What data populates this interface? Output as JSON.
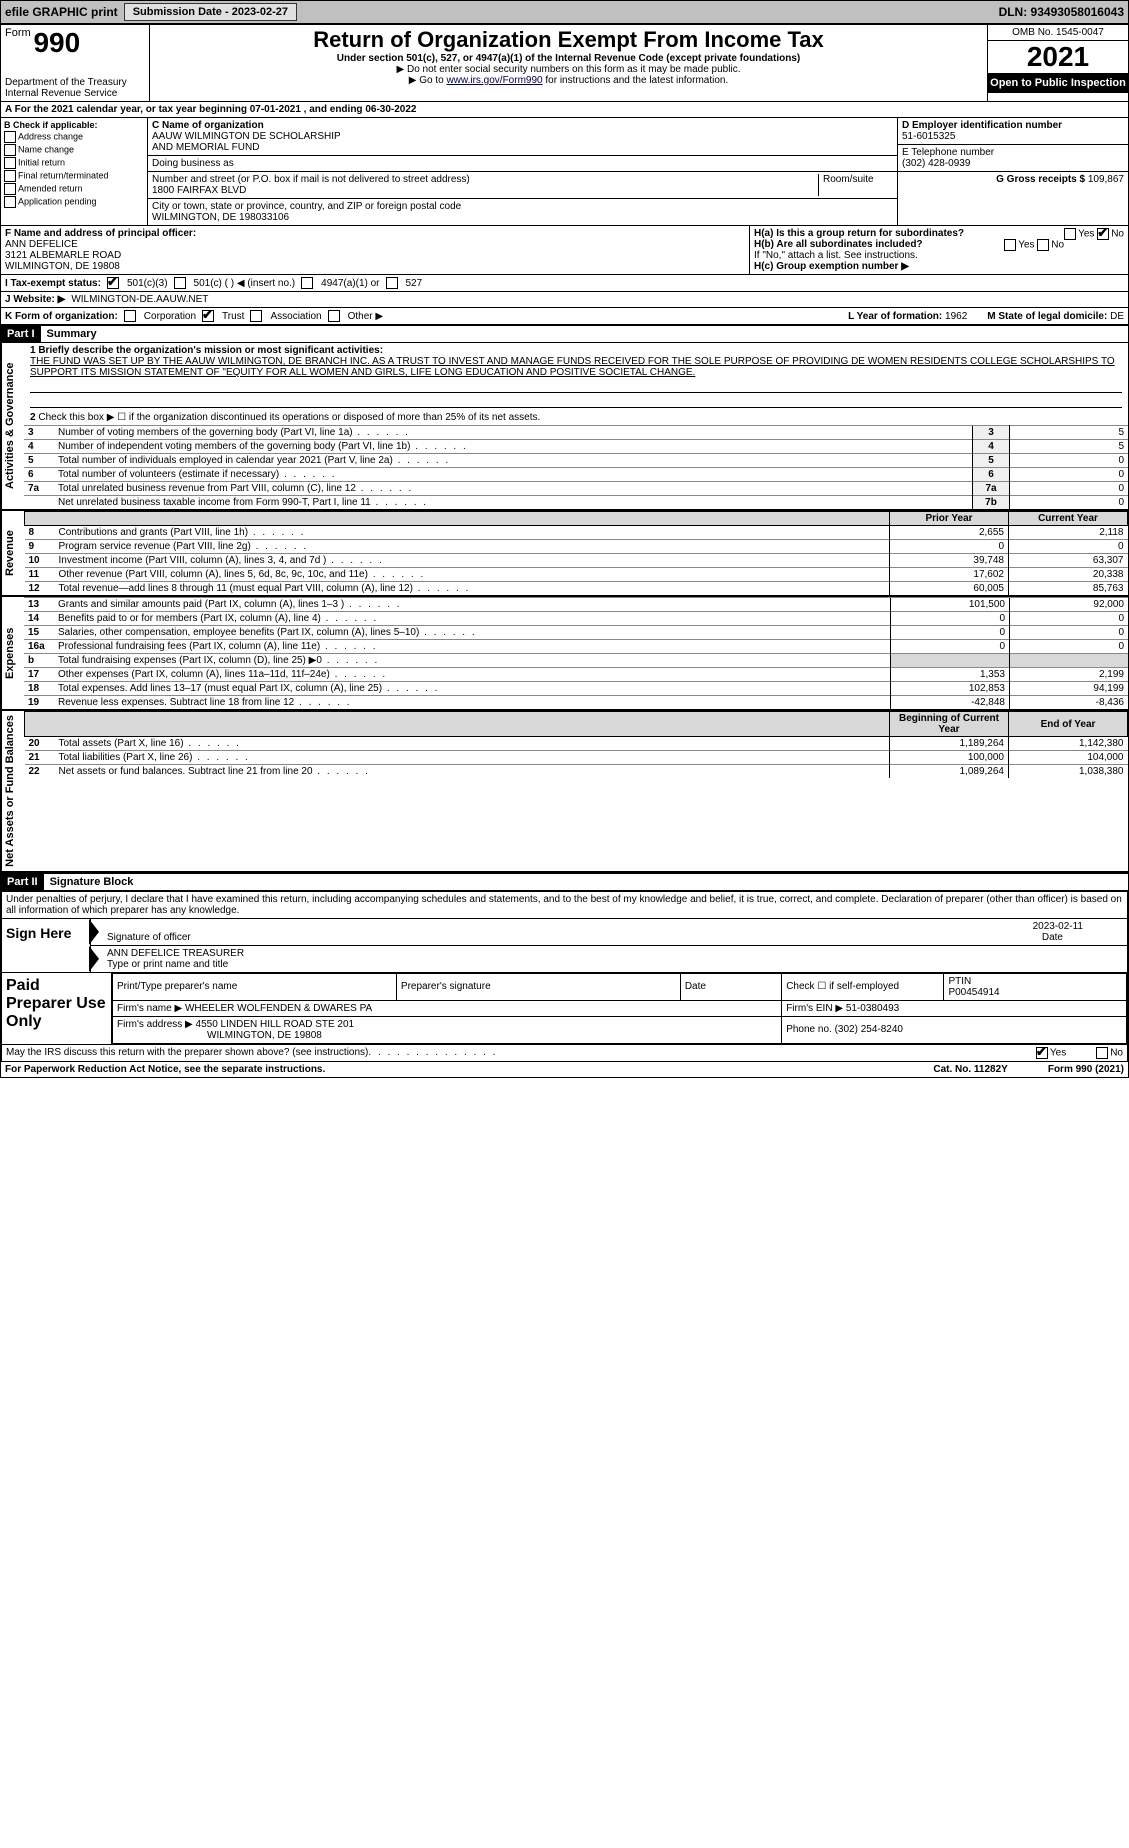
{
  "topbar": {
    "efile": "efile GRAPHIC print",
    "submission_label": "Submission Date - 2023-02-27",
    "dln": "DLN: 93493058016043"
  },
  "header": {
    "form_word": "Form",
    "form_no": "990",
    "title": "Return of Organization Exempt From Income Tax",
    "sub": "Under section 501(c), 527, or 4947(a)(1) of the Internal Revenue Code (except private foundations)",
    "line1": "▶ Do not enter social security numbers on this form as it may be made public.",
    "line2_pre": "▶ Go to ",
    "line2_link": "www.irs.gov/Form990",
    "line2_post": " for instructions and the latest information.",
    "dept": "Department of the Treasury",
    "irs": "Internal Revenue Service",
    "omb": "OMB No. 1545-0047",
    "year": "2021",
    "open": "Open to Public Inspection"
  },
  "lineA": "A For the 2021 calendar year, or tax year beginning 07-01-2021   , and ending 06-30-2022",
  "blockB": {
    "label": "B Check if applicable:",
    "opts": [
      "Address change",
      "Name change",
      "Initial return",
      "Final return/terminated",
      "Amended return",
      "Application pending"
    ]
  },
  "blockC": {
    "c_lab": "C Name of organization",
    "name1": "AAUW WILMINGTON DE SCHOLARSHIP",
    "name2": "AND MEMORIAL FUND",
    "dba_lab": "Doing business as",
    "addr_lab": "Number and street (or P.O. box if mail is not delivered to street address)",
    "room_lab": "Room/suite",
    "addr": "1800 FAIRFAX BLVD",
    "city_lab": "City or town, state or province, country, and ZIP or foreign postal code",
    "city": "WILMINGTON, DE  198033106"
  },
  "blockD": {
    "d_lab": "D Employer identification number",
    "ein": "51-6015325",
    "e_lab": "E Telephone number",
    "phone": "(302) 428-0939",
    "g_lab": "G Gross receipts $",
    "gross": "109,867"
  },
  "blockF": {
    "lab": "F Name and address of principal officer:",
    "name": "ANN DEFELICE",
    "addr1": "3121 ALBEMARLE ROAD",
    "addr2": "WILMINGTON, DE  19808"
  },
  "blockH": {
    "ha": "H(a)  Is this a group return for subordinates?",
    "hb": "H(b)  Are all subordinates included?",
    "hb2": "If \"No,\" attach a list. See instructions.",
    "hc": "H(c)  Group exemption number ▶",
    "yes": "Yes",
    "no": "No"
  },
  "taxrow": {
    "lab": "I  Tax-exempt status:",
    "o1": "501(c)(3)",
    "o2": "501(c) (   ) ◀ (insert no.)",
    "o3": "4947(a)(1) or",
    "o4": "527"
  },
  "webrow": {
    "lab": "J  Website: ▶",
    "val": "WILMINGTON-DE.AAUW.NET"
  },
  "krow": {
    "lab": "K Form of organization:",
    "o1": "Corporation",
    "o2": "Trust",
    "o3": "Association",
    "o4": "Other ▶",
    "l_lab": "L Year of formation:",
    "l_val": "1962",
    "m_lab": "M State of legal domicile:",
    "m_val": "DE"
  },
  "part1": {
    "tag": "Part I",
    "title": "Summary",
    "side1": "Activities & Governance",
    "side2": "Revenue",
    "side3": "Expenses",
    "side4": "Net Assets or Fund Balances",
    "l1_lab": "1 Briefly describe the organization's mission or most significant activities:",
    "l1_text": "THE FUND WAS SET UP BY THE AAUW WILMINGTON, DE BRANCH INC. AS A TRUST TO INVEST AND MANAGE FUNDS RECEIVED FOR THE SOLE PURPOSE OF PROVIDING DE WOMEN RESIDENTS COLLEGE SCHOLARSHIPS TO SUPPORT ITS MISSION STATEMENT OF \"EQUITY FOR ALL WOMEN AND GIRLS, LIFE LONG EDUCATION AND POSITIVE SOCIETAL CHANGE.",
    "l2": "Check this box ▶ ☐ if the organization discontinued its operations or disposed of more than 25% of its net assets.",
    "rows_ag": [
      {
        "n": "3",
        "t": "Number of voting members of the governing body (Part VI, line 1a)",
        "box": "3",
        "v": "5"
      },
      {
        "n": "4",
        "t": "Number of independent voting members of the governing body (Part VI, line 1b)",
        "box": "4",
        "v": "5"
      },
      {
        "n": "5",
        "t": "Total number of individuals employed in calendar year 2021 (Part V, line 2a)",
        "box": "5",
        "v": "0"
      },
      {
        "n": "6",
        "t": "Total number of volunteers (estimate if necessary)",
        "box": "6",
        "v": "0"
      },
      {
        "n": "7a",
        "t": "Total unrelated business revenue from Part VIII, column (C), line 12",
        "box": "7a",
        "v": "0"
      },
      {
        "n": "",
        "t": "Net unrelated business taxable income from Form 990-T, Part I, line 11",
        "box": "7b",
        "v": "0"
      }
    ],
    "hdr_prior": "Prior Year",
    "hdr_curr": "Current Year",
    "rows_rev": [
      {
        "n": "8",
        "t": "Contributions and grants (Part VIII, line 1h)",
        "p": "2,655",
        "c": "2,118"
      },
      {
        "n": "9",
        "t": "Program service revenue (Part VIII, line 2g)",
        "p": "0",
        "c": "0"
      },
      {
        "n": "10",
        "t": "Investment income (Part VIII, column (A), lines 3, 4, and 7d )",
        "p": "39,748",
        "c": "63,307"
      },
      {
        "n": "11",
        "t": "Other revenue (Part VIII, column (A), lines 5, 6d, 8c, 9c, 10c, and 11e)",
        "p": "17,602",
        "c": "20,338"
      },
      {
        "n": "12",
        "t": "Total revenue—add lines 8 through 11 (must equal Part VIII, column (A), line 12)",
        "p": "60,005",
        "c": "85,763"
      }
    ],
    "rows_exp": [
      {
        "n": "13",
        "t": "Grants and similar amounts paid (Part IX, column (A), lines 1–3 )",
        "p": "101,500",
        "c": "92,000"
      },
      {
        "n": "14",
        "t": "Benefits paid to or for members (Part IX, column (A), line 4)",
        "p": "0",
        "c": "0"
      },
      {
        "n": "15",
        "t": "Salaries, other compensation, employee benefits (Part IX, column (A), lines 5–10)",
        "p": "0",
        "c": "0"
      },
      {
        "n": "16a",
        "t": "Professional fundraising fees (Part IX, column (A), line 11e)",
        "p": "0",
        "c": "0"
      },
      {
        "n": "b",
        "t": "Total fundraising expenses (Part IX, column (D), line 25) ▶0",
        "p": "",
        "c": ""
      },
      {
        "n": "17",
        "t": "Other expenses (Part IX, column (A), lines 11a–11d, 11f–24e)",
        "p": "1,353",
        "c": "2,199"
      },
      {
        "n": "18",
        "t": "Total expenses. Add lines 13–17 (must equal Part IX, column (A), line 25)",
        "p": "102,853",
        "c": "94,199"
      },
      {
        "n": "19",
        "t": "Revenue less expenses. Subtract line 18 from line 12",
        "p": "-42,848",
        "c": "-8,436"
      }
    ],
    "hdr_beg": "Beginning of Current Year",
    "hdr_end": "End of Year",
    "rows_net": [
      {
        "n": "20",
        "t": "Total assets (Part X, line 16)",
        "p": "1,189,264",
        "c": "1,142,380"
      },
      {
        "n": "21",
        "t": "Total liabilities (Part X, line 26)",
        "p": "100,000",
        "c": "104,000"
      },
      {
        "n": "22",
        "t": "Net assets or fund balances. Subtract line 21 from line 20",
        "p": "1,089,264",
        "c": "1,038,380"
      }
    ]
  },
  "part2": {
    "tag": "Part II",
    "title": "Signature Block",
    "decl": "Under penalties of perjury, I declare that I have examined this return, including accompanying schedules and statements, and to the best of my knowledge and belief, it is true, correct, and complete. Declaration of preparer (other than officer) is based on all information of which preparer has any knowledge.",
    "sign_here": "Sign Here",
    "sig_of": "Signature of officer",
    "date_lab": "Date",
    "date_val": "2023-02-11",
    "name_title": "ANN DEFELICE TREASURER",
    "type_lab": "Type or print name and title",
    "paid_lab": "Paid Preparer Use Only",
    "pt_name_lab": "Print/Type preparer's name",
    "prep_sig_lab": "Preparer's signature",
    "ck_lab": "Check ☐ if self-employed",
    "ptin_lab": "PTIN",
    "ptin": "P00454914",
    "firm_name_lab": "Firm's name    ▶",
    "firm_name": "WHEELER WOLFENDEN & DWARES PA",
    "firm_ein_lab": "Firm's EIN ▶",
    "firm_ein": "51-0380493",
    "firm_addr_lab": "Firm's address ▶",
    "firm_addr1": "4550 LINDEN HILL ROAD STE 201",
    "firm_addr2": "WILMINGTON, DE  19808",
    "phone_lab": "Phone no.",
    "phone": "(302) 254-8240",
    "may_irs": "May the IRS discuss this return with the preparer shown above? (see instructions)",
    "yes": "Yes",
    "no": "No"
  },
  "footer": {
    "pra": "For Paperwork Reduction Act Notice, see the separate instructions.",
    "cat": "Cat. No. 11282Y",
    "form": "Form 990 (2021)"
  }
}
